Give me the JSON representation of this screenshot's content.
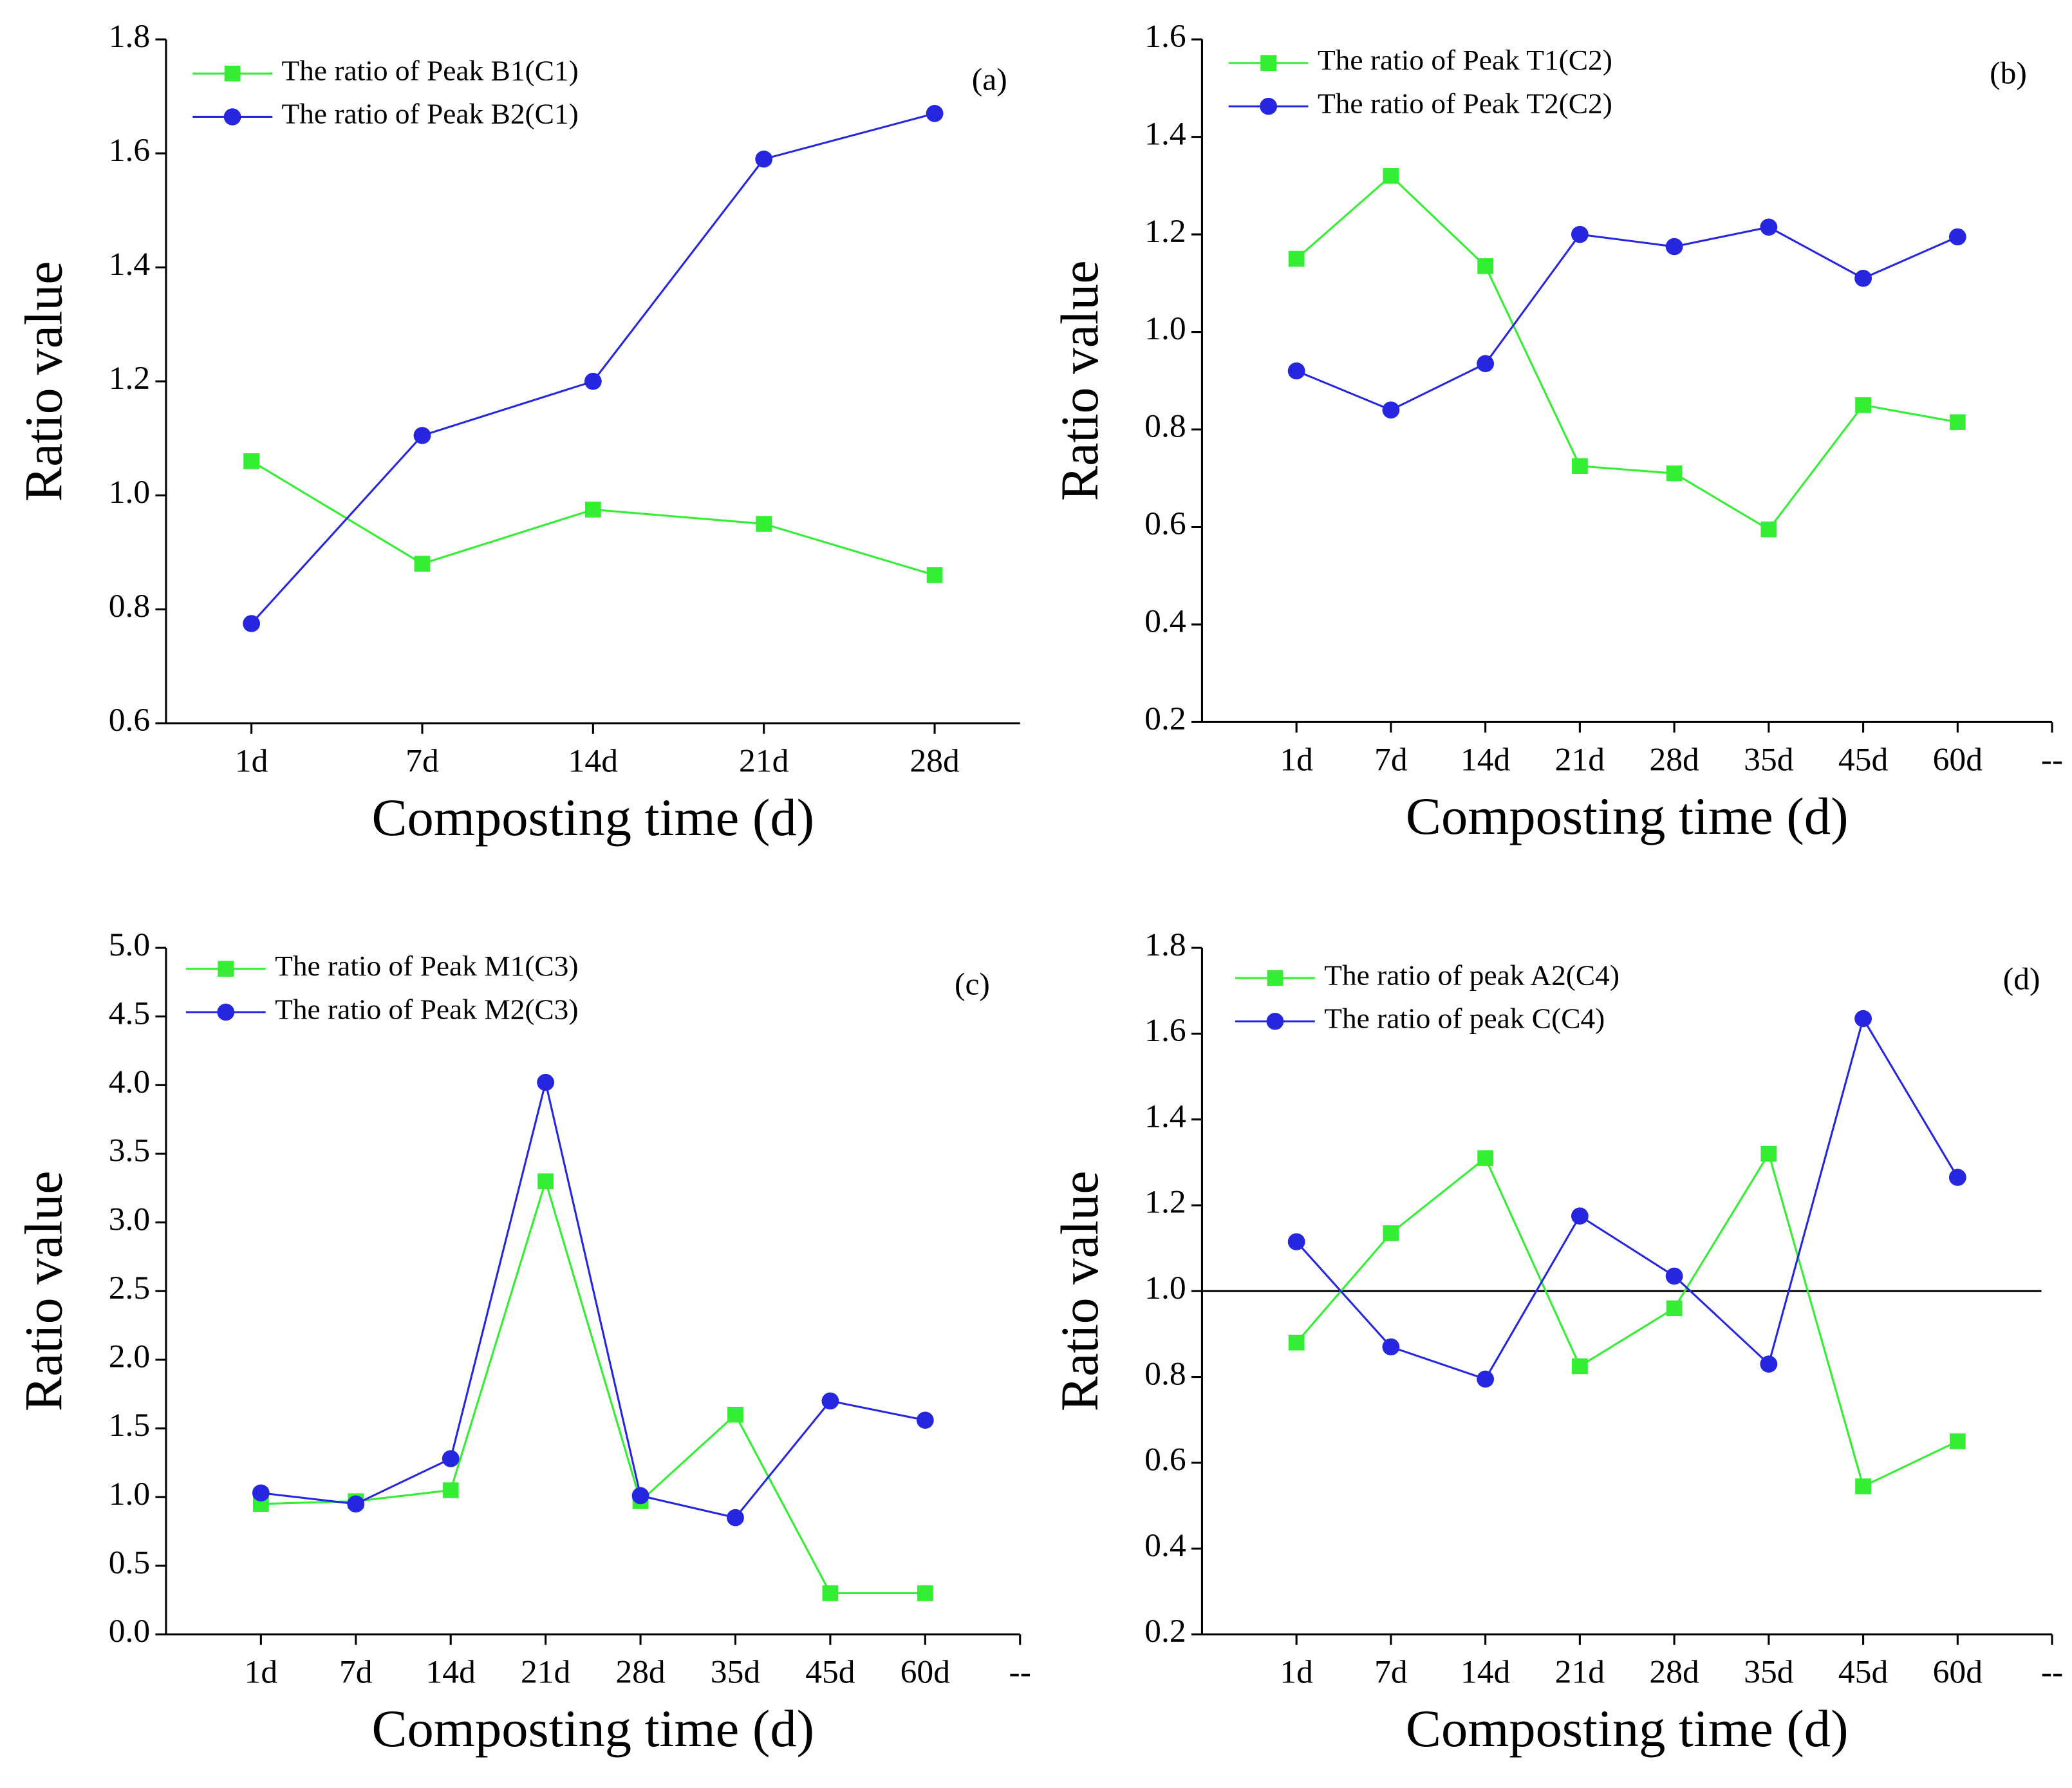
{
  "chart_data": [
    {
      "type": "line",
      "annotation": "(a)",
      "x_label": "Composting time (d)",
      "y_label": "Ratio value",
      "categories": [
        "1d",
        "7d",
        "14d",
        "21d",
        "28d"
      ],
      "series": [
        {
          "name": "The ratio of Peak B1(C1)",
          "color": "#33ee33",
          "marker": "square",
          "values": [
            1.06,
            0.88,
            0.975,
            0.95,
            0.86
          ]
        },
        {
          "name": "The ratio of Peak B2(C1)",
          "color": "#2626e0",
          "marker": "circle",
          "values": [
            0.775,
            1.105,
            1.2,
            1.59,
            1.67
          ]
        }
      ],
      "ylim": [
        0.6,
        1.8
      ],
      "yticks": [
        0.6,
        0.8,
        {
          "value": 1,
          "label": "1.0"
        },
        1.2,
        1.4,
        1.6,
        1.8
      ]
    },
    {
      "type": "line",
      "annotation": "(b)",
      "x_label": "Composting time (d)",
      "y_label": "Ratio value",
      "categories": [
        "1d",
        "7d",
        "14d",
        "21d",
        "28d",
        "35d",
        "45d",
        "60d",
        "--"
      ],
      "series": [
        {
          "name": "The ratio of Peak T1(C2)",
          "color": "#33ee33",
          "marker": "square",
          "values": [
            1.15,
            1.32,
            1.135,
            0.725,
            0.71,
            0.595,
            0.85,
            0.815,
            null
          ]
        },
        {
          "name": "The ratio of Peak T2(C2)",
          "color": "#2626e0",
          "marker": "circle",
          "values": [
            0.92,
            0.84,
            0.935,
            1.2,
            1.175,
            1.215,
            1.11,
            1.195,
            null
          ]
        }
      ],
      "ylim": [
        0.2,
        1.6
      ],
      "yticks": [
        0.2,
        0.4,
        0.6,
        0.8,
        {
          "value": 1,
          "label": "1.0"
        },
        1.2,
        1.4,
        1.6
      ]
    },
    {
      "type": "line",
      "annotation": "(c)",
      "x_label": "Composting time (d)",
      "y_label": "Ratio value",
      "categories": [
        "1d",
        "7d",
        "14d",
        "21d",
        "28d",
        "35d",
        "45d",
        "60d",
        "--"
      ],
      "series": [
        {
          "name": "The ratio of Peak M1(C3)",
          "color": "#33ee33",
          "marker": "square",
          "values": [
            0.95,
            0.97,
            1.05,
            3.3,
            0.97,
            1.6,
            0.3,
            0.3,
            null
          ]
        },
        {
          "name": "The ratio of Peak M2(C3)",
          "color": "#2626e0",
          "marker": "circle",
          "values": [
            1.03,
            0.95,
            1.28,
            4.02,
            1.01,
            0.85,
            1.7,
            1.56,
            null
          ]
        }
      ],
      "ylim": [
        0,
        5
      ],
      "yticks": [
        {
          "value": 0,
          "label": "0.0"
        },
        0.5,
        {
          "value": 1,
          "label": "1.0"
        },
        1.5,
        {
          "value": 2,
          "label": "2.0"
        },
        2.5,
        {
          "value": 3,
          "label": "3.0"
        },
        3.5,
        {
          "value": 4,
          "label": "4.0"
        },
        4.5,
        {
          "value": 5,
          "label": "5.0"
        }
      ]
    },
    {
      "type": "line",
      "annotation": "(d)",
      "x_label": "Composting time (d)",
      "y_label": "Ratio value",
      "categories": [
        "1d",
        "7d",
        "14d",
        "21d",
        "28d",
        "35d",
        "45d",
        "60d",
        "--"
      ],
      "series": [
        {
          "name": "The ratio of peak A2(C4)",
          "color": "#33ee33",
          "marker": "square",
          "values": [
            0.88,
            1.135,
            1.31,
            0.825,
            0.96,
            1.32,
            0.545,
            0.65,
            null
          ]
        },
        {
          "name": "The ratio of peak C(C4)",
          "color": "#2626e0",
          "marker": "circle",
          "values": [
            1.115,
            0.87,
            0.795,
            1.175,
            1.035,
            0.83,
            1.635,
            1.265,
            null
          ]
        }
      ],
      "ylim": [
        0.2,
        1.8
      ],
      "yticks": [
        0.2,
        0.4,
        0.6,
        0.8,
        {
          "value": 1,
          "label": "1.0"
        },
        1.2,
        1.4,
        1.6,
        1.8
      ],
      "reference_line": 1
    }
  ]
}
